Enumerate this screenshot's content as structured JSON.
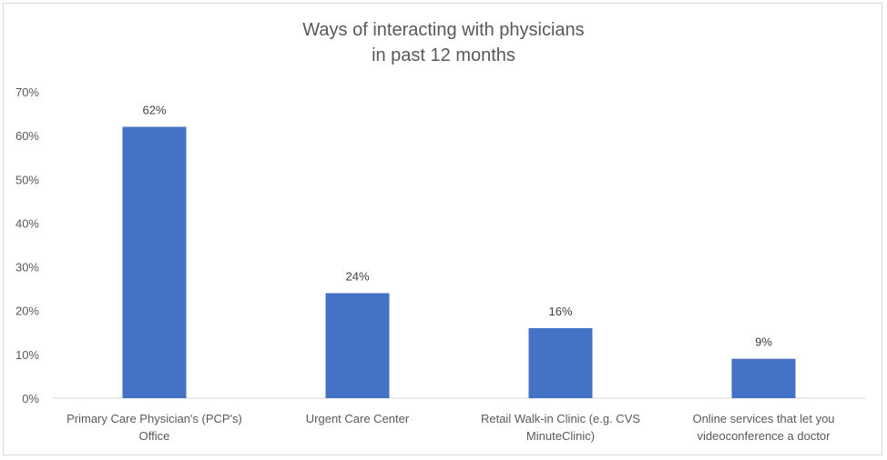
{
  "chart_data": {
    "type": "bar",
    "title": [
      "Ways of interacting with physicians",
      "in past 12 months"
    ],
    "categories": [
      [
        "Primary Care Physician's (PCP's)",
        "Office"
      ],
      [
        "Urgent Care Center"
      ],
      [
        "Retail Walk-in Clinic (e.g. CVS",
        "MinuteClinic)"
      ],
      [
        "Online services that let you",
        "videoconference a doctor"
      ]
    ],
    "values": [
      62,
      24,
      16,
      9
    ],
    "data_labels": [
      "62%",
      "24%",
      "16%",
      "9%"
    ],
    "ylim": [
      0,
      70
    ],
    "yticks": [
      0,
      10,
      20,
      30,
      40,
      50,
      60,
      70
    ],
    "ytick_labels": [
      "0%",
      "10%",
      "20%",
      "30%",
      "40%",
      "50%",
      "60%",
      "70%"
    ],
    "xlabel": "",
    "ylabel": "",
    "grid": false,
    "legend": "none",
    "bar_color": "#4472c4"
  }
}
